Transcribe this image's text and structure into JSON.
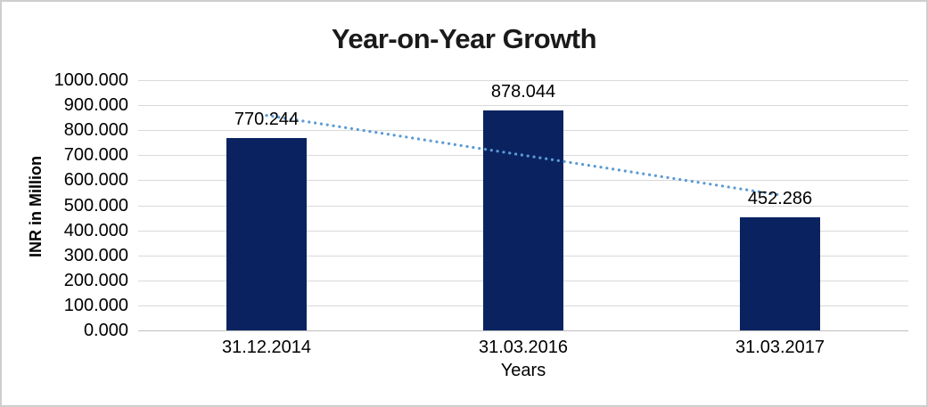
{
  "chart_data": {
    "type": "bar",
    "title": "Year-on-Year Growth",
    "xlabel": "Years",
    "ylabel": "INR in Million",
    "categories": [
      "31.12.2014",
      "31.03.2016",
      "31.03.2017"
    ],
    "values": [
      770.244,
      878.044,
      452.286
    ],
    "data_labels": [
      "770.244",
      "878.044",
      "452.286"
    ],
    "ylim": [
      0,
      1000
    ],
    "ytick_step": 100,
    "ytick_labels": [
      "0.000",
      "100.000",
      "200.000",
      "300.000",
      "400.000",
      "500.000",
      "600.000",
      "700.000",
      "800.000",
      "900.000",
      "1000.000"
    ],
    "grid": true,
    "legend": false,
    "trendline": {
      "type": "linear",
      "style": "dotted"
    },
    "colors": {
      "bar": "#0a2360",
      "trendline": "#5b9bd5",
      "gridline": "#d9d9d9",
      "axis_line": "#bfbfbf",
      "text": "#000000",
      "title": "#1a1a1a"
    }
  }
}
